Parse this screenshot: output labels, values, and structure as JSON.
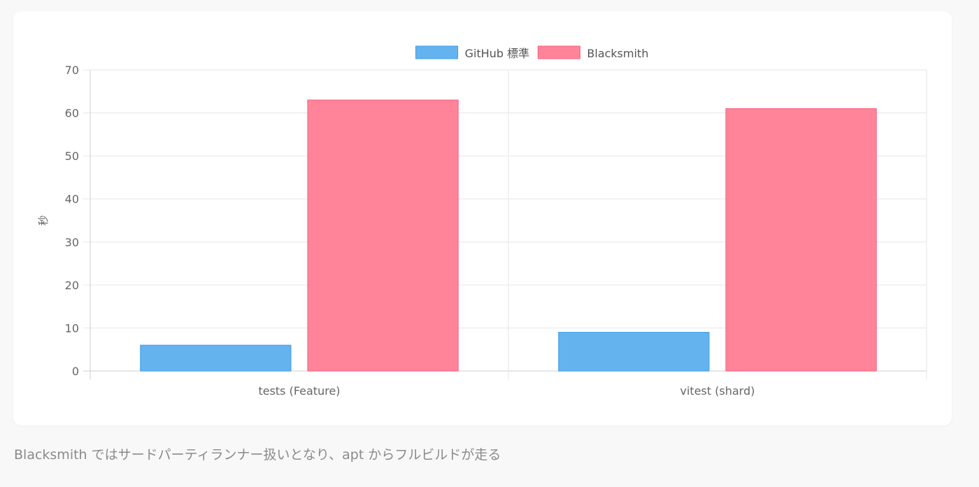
{
  "chart_data": {
    "type": "bar",
    "categories": [
      "tests (Feature)",
      "vitest (shard)"
    ],
    "series": [
      {
        "name": "GitHub 標準",
        "values": [
          6,
          9
        ],
        "color": "#64b3ef",
        "border": "#3b9ce6"
      },
      {
        "name": "Blacksmith",
        "values": [
          63,
          61
        ],
        "color": "#ff8499",
        "border": "#f4627d"
      }
    ],
    "title": "",
    "xlabel": "",
    "ylabel": "秒",
    "ylim": [
      0,
      70
    ],
    "yticks": [
      0,
      10,
      20,
      30,
      40,
      50,
      60,
      70
    ],
    "grid": true,
    "legend_position": "top-center"
  },
  "caption": "Blacksmith ではサードパーティランナー扱いとなり、apt からフルビルドが走る"
}
